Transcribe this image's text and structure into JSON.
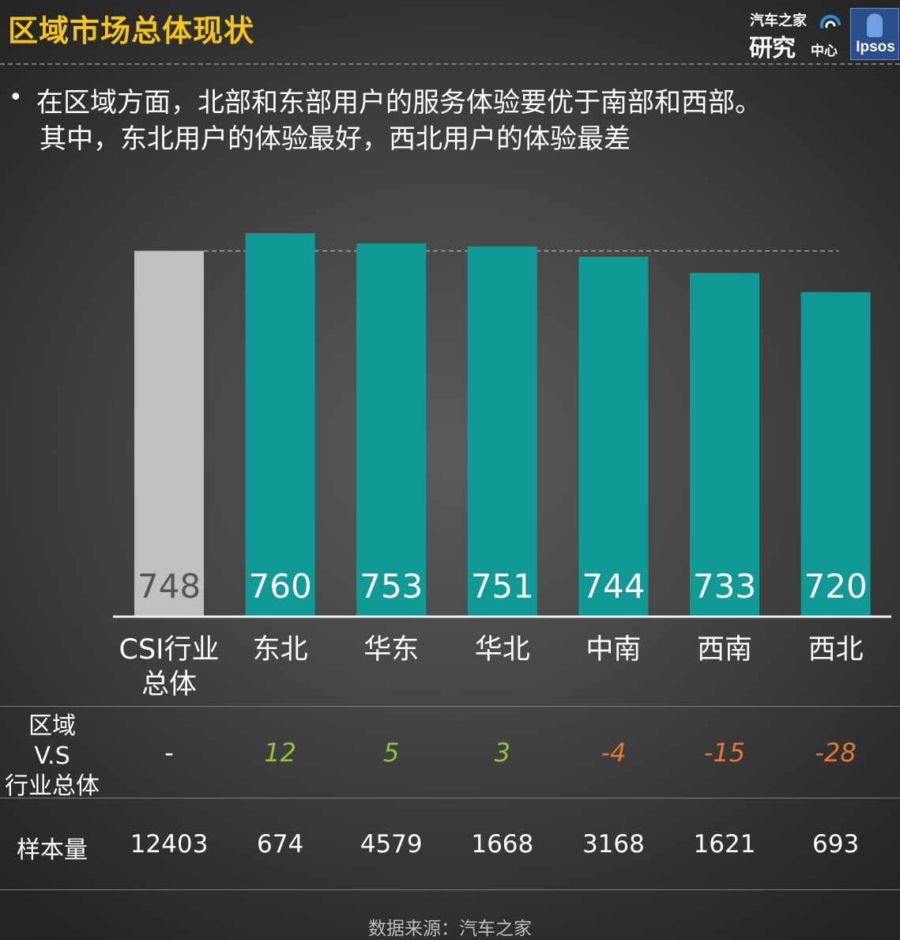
{
  "header": {
    "title": "区域市场总体现状",
    "logos": {
      "autohome_line1": "汽车之家",
      "autohome_line2": "研究",
      "autohome_line3": "中心",
      "ipsos": "Ipsos"
    }
  },
  "bullets": {
    "line1": "在区域方面，北部和东部用户的服务体验要优于南部和西部。",
    "line2": "其中，东北用户的体验最好，西北用户的体验最差"
  },
  "colors": {
    "title": "#f5c518",
    "bar_benchmark": "#c0c0c0",
    "bar_region": "#119996",
    "positive": "#8fc43a",
    "negative": "#e27a2e"
  },
  "chart_data": {
    "type": "bar",
    "categories": [
      "CSI行业总体",
      "东北",
      "华东",
      "华北",
      "中南",
      "西南",
      "西北"
    ],
    "category_lines": [
      [
        "CSI行业",
        "总体"
      ],
      [
        "东北"
      ],
      [
        "华东"
      ],
      [
        "华北"
      ],
      [
        "中南"
      ],
      [
        "西南"
      ],
      [
        "西北"
      ]
    ],
    "values": [
      748,
      760,
      753,
      751,
      744,
      733,
      720
    ],
    "reference_value": 748,
    "benchmark_index": 0,
    "ylim": [
      0,
      760
    ],
    "grid": false,
    "title": "",
    "xlabel": "",
    "ylabel": ""
  },
  "table": {
    "diff_label_lines": [
      "区域",
      "V.S",
      "行业总体"
    ],
    "diff_values": [
      "-",
      "12",
      "5",
      "3",
      "-4",
      "-15",
      "-28"
    ],
    "sample_label": "样本量",
    "sample_values": [
      "12403",
      "674",
      "4579",
      "1668",
      "3168",
      "1621",
      "693"
    ]
  },
  "footer": {
    "source": "数据来源：汽车之家"
  }
}
